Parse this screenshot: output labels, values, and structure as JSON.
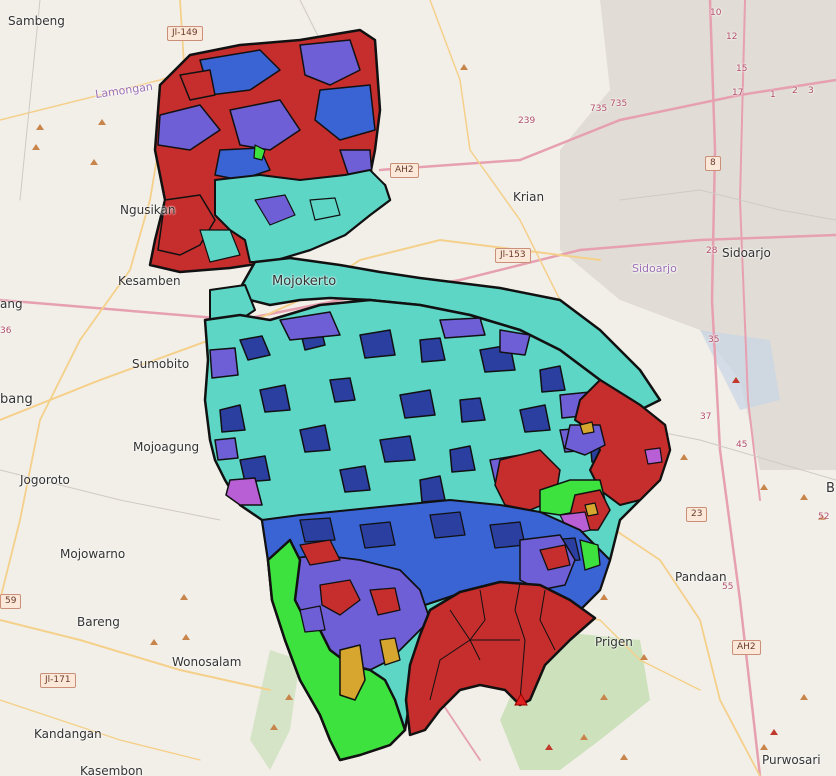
{
  "places": [
    {
      "id": "sambeng",
      "name": "Sambeng"
    },
    {
      "id": "ngusikan",
      "name": "Ngusikan"
    },
    {
      "id": "kesamben",
      "name": "Kesamben"
    },
    {
      "id": "sumobito",
      "name": "Sumobito"
    },
    {
      "id": "mojoagung",
      "name": "Mojoagung"
    },
    {
      "id": "jogoroto",
      "name": "Jogoroto"
    },
    {
      "id": "mojowarno",
      "name": "Mojowarno"
    },
    {
      "id": "bareng",
      "name": "Bareng"
    },
    {
      "id": "wonosalam",
      "name": "Wonosalam"
    },
    {
      "id": "kandangan",
      "name": "Kandangan"
    },
    {
      "id": "kasembon",
      "name": "Kasembon"
    },
    {
      "id": "krian",
      "name": "Krian"
    },
    {
      "id": "sidoarjo",
      "name": "Sidoarjo"
    },
    {
      "id": "pandaan",
      "name": "Pandaan"
    },
    {
      "id": "prigen",
      "name": "Prigen"
    },
    {
      "id": "purwosari",
      "name": "Purwosari"
    },
    {
      "id": "mojokerto",
      "name": "Mojokerto"
    },
    {
      "id": "jombang",
      "name": "bang"
    },
    {
      "id": "lamongan",
      "name": "Lamongan"
    },
    {
      "id": "ang",
      "name": "ang"
    },
    {
      "id": "b",
      "name": "B"
    }
  ],
  "region_labels": [
    {
      "id": "sidoarjo-region",
      "name": "Sidoarjo"
    }
  ],
  "road_shields": [
    {
      "id": "jl149",
      "text": "Jl-149"
    },
    {
      "id": "ah2a",
      "text": "AH2"
    },
    {
      "id": "jl153",
      "text": "Jl-153"
    },
    {
      "id": "n8",
      "text": "8"
    },
    {
      "id": "n23",
      "text": "23"
    },
    {
      "id": "ah2b",
      "text": "AH2"
    },
    {
      "id": "jl171",
      "text": "Jl-171"
    },
    {
      "id": "n59",
      "text": "59"
    }
  ],
  "road_numbers": [
    {
      "id": "r735a",
      "text": "735"
    },
    {
      "id": "r735b",
      "text": "735"
    },
    {
      "id": "r239",
      "text": "239"
    },
    {
      "id": "r28",
      "text": "28"
    },
    {
      "id": "r35",
      "text": "35"
    },
    {
      "id": "r37",
      "text": "37"
    },
    {
      "id": "r45",
      "text": "45"
    },
    {
      "id": "r55",
      "text": "55"
    },
    {
      "id": "r36",
      "text": "36"
    },
    {
      "id": "r10",
      "text": "10"
    },
    {
      "id": "r12",
      "text": "12"
    },
    {
      "id": "r15",
      "text": "15"
    },
    {
      "id": "r17",
      "text": "17"
    },
    {
      "id": "r2",
      "text": "2"
    },
    {
      "id": "r3",
      "text": "3"
    },
    {
      "id": "r1",
      "text": "1"
    },
    {
      "id": "r52",
      "text": "52"
    }
  ],
  "colors": {
    "background": "#f2efe9",
    "landuse_classes": [
      "#c62d2d",
      "#3a63d4",
      "#6f5fd6",
      "#5ed6c6",
      "#3ee23e",
      "#b85fd6",
      "#d6a62e"
    ],
    "boundary": "#111111",
    "primary_road": "#e6a0b0",
    "secondary_road": "#f5d08a",
    "urban": "#d9d5ce",
    "forest": "#b7d9a4"
  }
}
